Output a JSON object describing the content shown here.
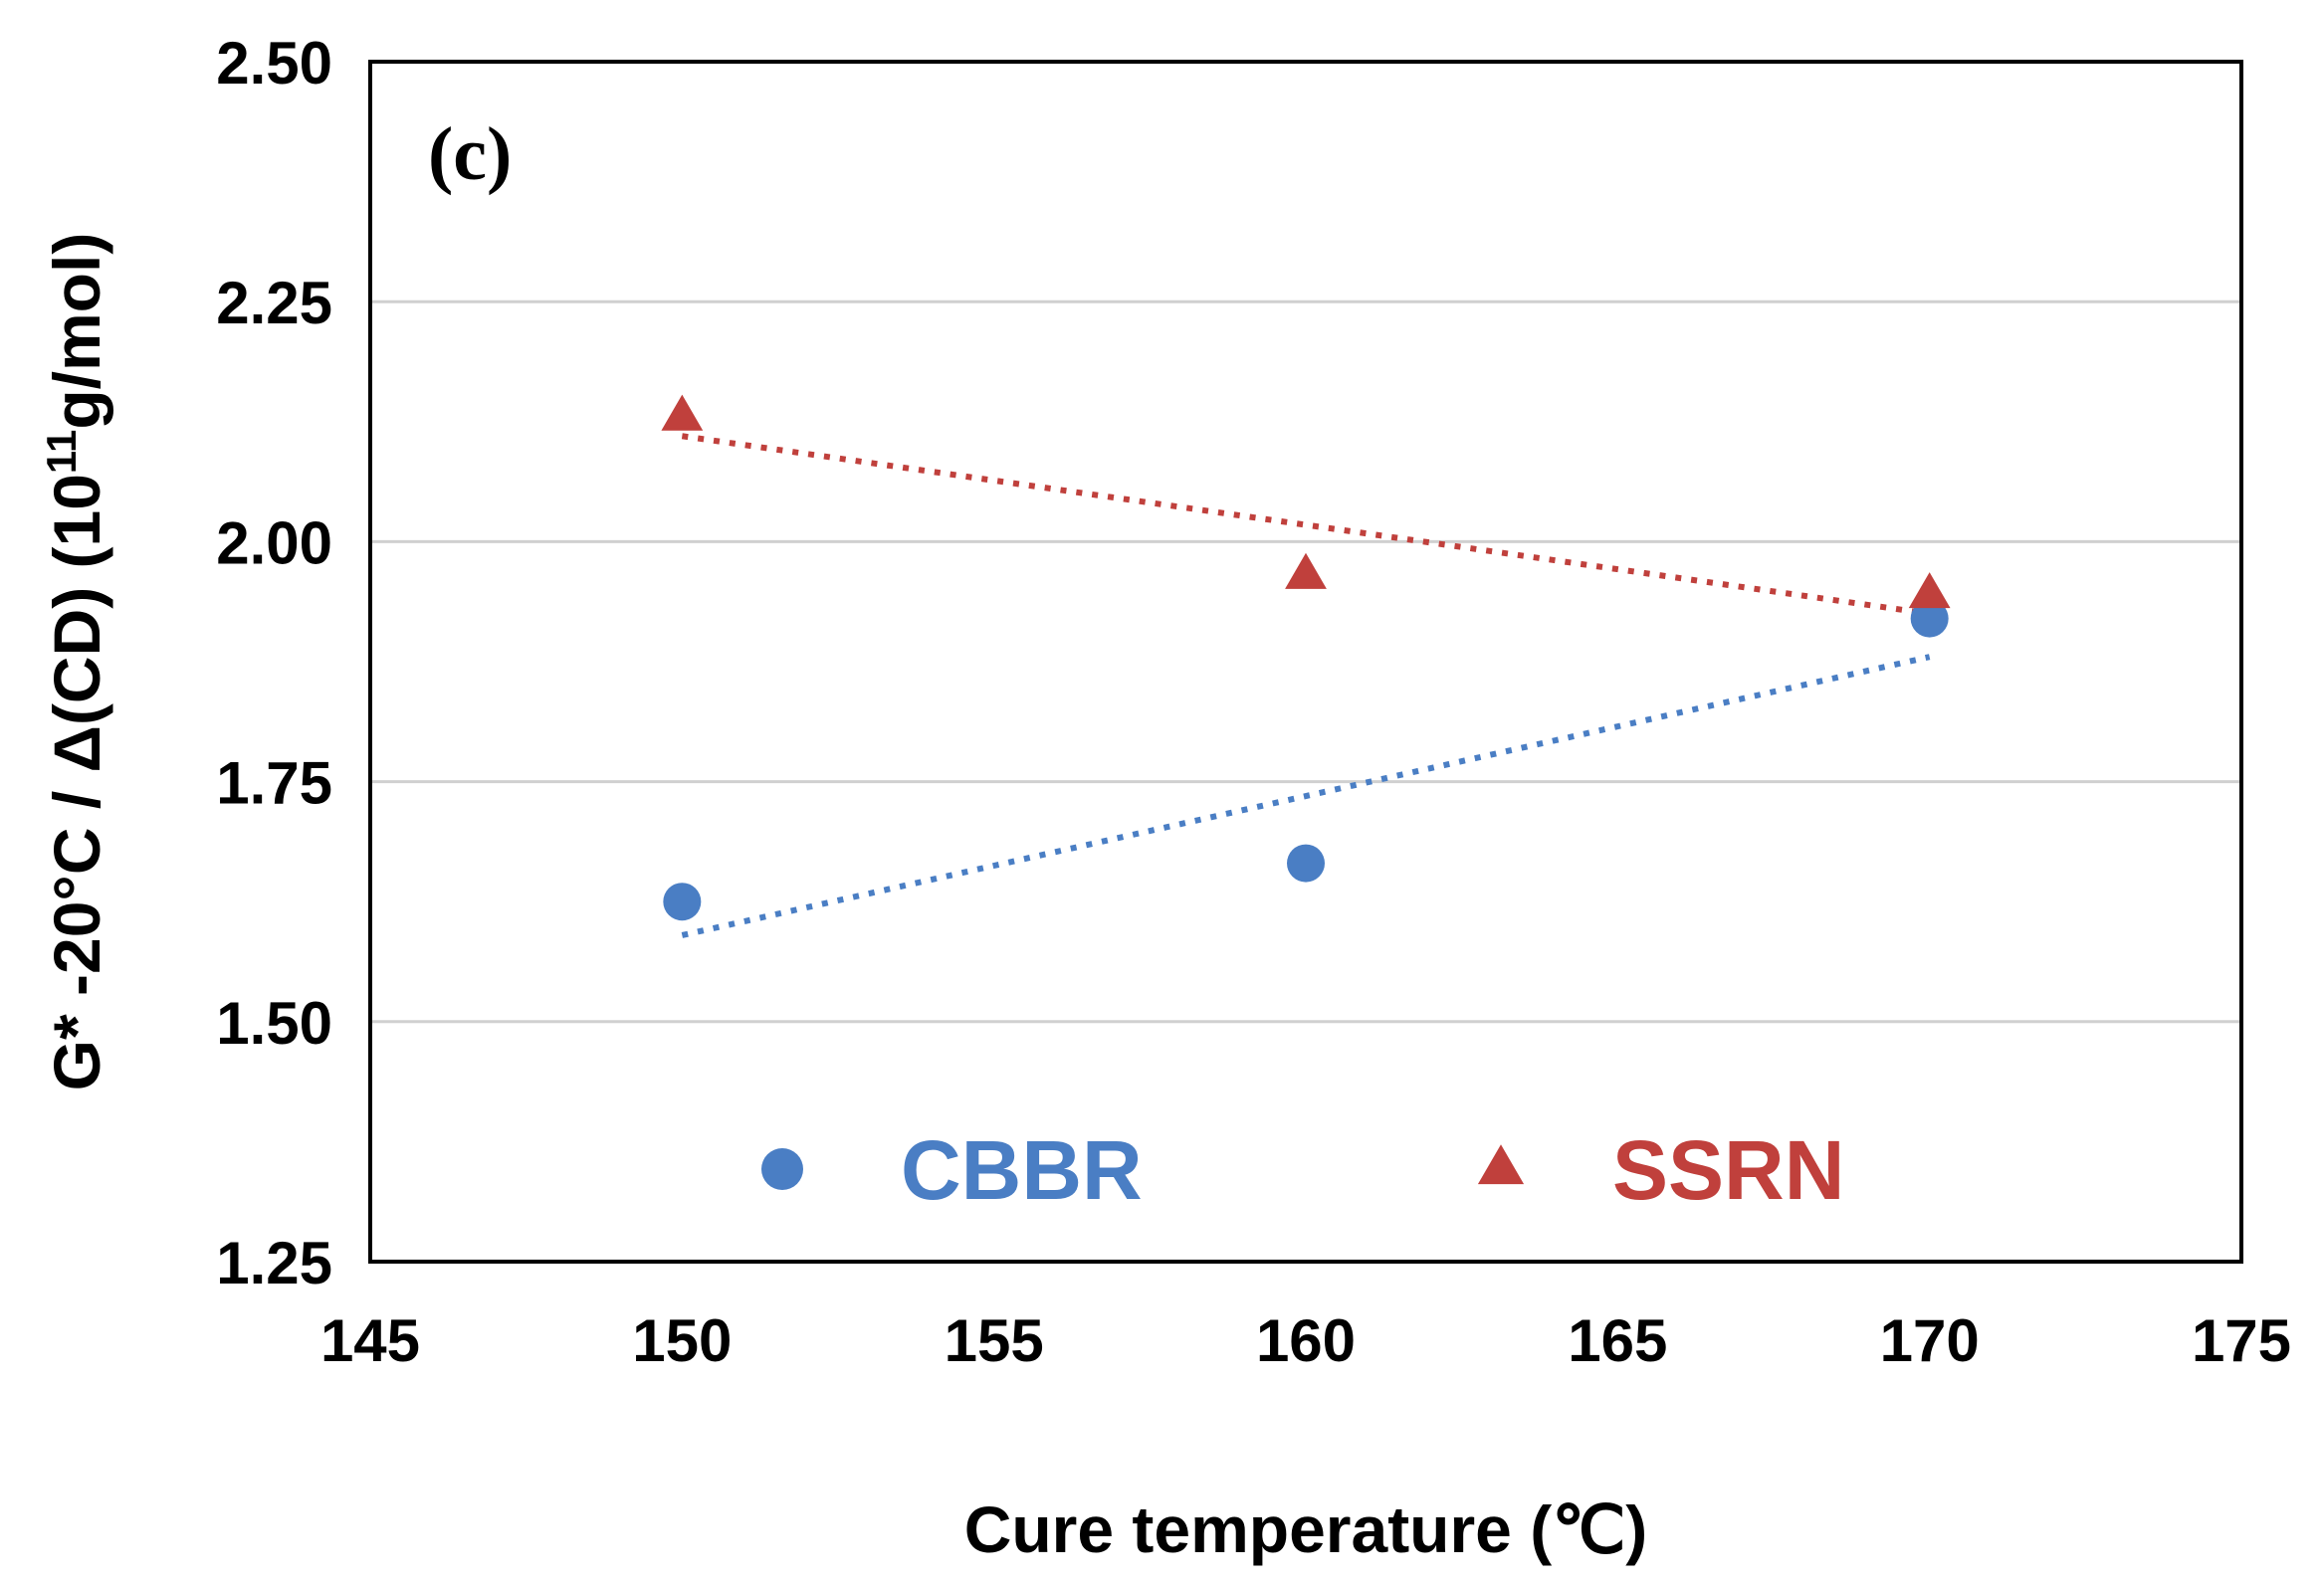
{
  "chart_data": {
    "type": "scatter",
    "panel_label": "(c)",
    "xlabel": "Cure temperature (℃)",
    "ylabel_parts": [
      "G* -20°C / Δ(CD) (10",
      "11",
      "g/mol)"
    ],
    "xlim": [
      145,
      175
    ],
    "ylim": [
      1.25,
      2.5
    ],
    "x_ticks": [
      "145",
      "150",
      "155",
      "160",
      "165",
      "170",
      "175"
    ],
    "x_tick_values": [
      145,
      150,
      155,
      160,
      165,
      170,
      175
    ],
    "y_ticks": [
      "1.25",
      "1.50",
      "1.75",
      "2.00",
      "2.25",
      "2.50"
    ],
    "y_tick_values": [
      1.25,
      1.5,
      1.75,
      2.0,
      2.25,
      2.5
    ],
    "grid": true,
    "legend_position": "bottom",
    "series": [
      {
        "name": "CBBR",
        "marker": "circle",
        "color": "#4a7ec4",
        "x": [
          150,
          160,
          170
        ],
        "y": [
          1.625,
          1.665,
          1.92
        ],
        "trendline": {
          "x": [
            150,
            170
          ],
          "y": [
            1.59,
            1.88
          ]
        }
      },
      {
        "name": "SSRN",
        "marker": "triangle",
        "color": "#c0403c",
        "x": [
          150,
          160,
          170
        ],
        "y": [
          2.13,
          1.965,
          1.945
        ],
        "trendline": {
          "x": [
            150,
            170
          ],
          "y": [
            2.11,
            1.925
          ]
        }
      }
    ]
  }
}
